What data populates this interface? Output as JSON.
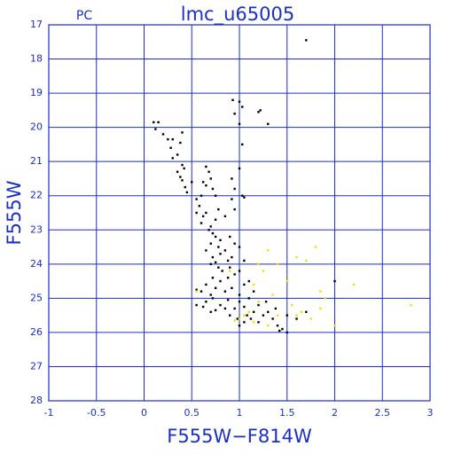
{
  "chart_data": {
    "type": "scatter",
    "title": "lmc_u65005",
    "label": "PC",
    "xlabel": "F555W−F814W",
    "ylabel": "F555W",
    "xlim": [
      -1,
      3
    ],
    "xticks": [
      -1,
      -0.5,
      0,
      0.5,
      1,
      1.5,
      2,
      2.5,
      3
    ],
    "ylim": [
      17,
      28
    ],
    "y_inverted": true,
    "yticks": [
      17,
      18,
      19,
      20,
      21,
      22,
      23,
      24,
      25,
      26,
      27,
      28
    ],
    "grid": true,
    "series": [
      {
        "color": "#000000",
        "x": [
          1.7,
          0.93,
          1.0,
          1.03,
          1.2,
          1.22,
          1.3,
          0.95,
          1.0,
          0.1,
          0.15,
          0.12,
          0.25,
          0.3,
          0.2,
          0.4,
          0.38,
          0.28,
          0.35,
          0.3,
          1.03,
          0.4,
          0.42,
          0.35,
          0.38,
          0.4,
          0.43,
          0.5,
          0.45,
          0.65,
          0.68,
          0.7,
          0.62,
          0.65,
          0.72,
          0.6,
          0.55,
          0.58,
          0.75,
          0.92,
          0.95,
          1.0,
          1.03,
          1.05,
          0.92,
          0.55,
          0.62,
          0.6,
          0.65,
          0.7,
          0.75,
          0.78,
          0.85,
          0.95,
          0.68,
          0.72,
          0.75,
          0.8,
          0.7,
          0.78,
          0.85,
          0.9,
          0.95,
          0.65,
          0.72,
          0.8,
          0.88,
          0.92,
          1.0,
          1.05,
          0.75,
          0.7,
          0.78,
          0.82,
          0.9,
          0.95,
          0.72,
          0.8,
          0.88,
          1.0,
          1.05,
          0.65,
          0.75,
          0.85,
          0.92,
          1.0,
          1.1,
          1.15,
          0.7,
          0.6,
          0.55,
          0.55,
          0.65,
          0.72,
          0.8,
          0.88,
          0.95,
          1.0,
          1.05,
          1.1,
          1.15,
          1.2,
          1.25,
          0.9,
          0.85,
          0.98,
          1.05,
          1.12,
          1.2,
          1.3,
          1.35,
          1.4,
          1.45,
          0.75,
          0.62,
          1.0,
          1.28,
          1.5,
          1.6,
          1.7,
          1.38,
          1.08,
          0.7,
          2.0,
          1.5,
          1.42
        ],
        "values": [
          17.45,
          19.2,
          19.25,
          19.4,
          19.55,
          19.5,
          19.9,
          19.6,
          19.9,
          19.85,
          19.85,
          20.05,
          20.35,
          20.35,
          20.2,
          20.15,
          20.45,
          20.6,
          20.8,
          20.9,
          20.5,
          21.1,
          21.2,
          21.3,
          21.45,
          21.55,
          21.75,
          21.6,
          21.9,
          21.15,
          21.3,
          21.5,
          21.6,
          21.7,
          21.8,
          22.0,
          22.1,
          22.3,
          22.0,
          21.5,
          21.8,
          21.2,
          22.0,
          22.05,
          22.1,
          22.5,
          22.6,
          22.8,
          22.5,
          22.9,
          22.7,
          22.4,
          22.6,
          22.4,
          23.0,
          23.1,
          23.2,
          23.3,
          23.4,
          23.5,
          23.6,
          23.2,
          23.4,
          23.6,
          23.8,
          23.7,
          23.9,
          23.8,
          23.5,
          23.9,
          23.95,
          24.0,
          24.1,
          24.2,
          24.1,
          24.3,
          24.4,
          24.5,
          24.4,
          24.2,
          24.6,
          24.6,
          24.7,
          24.8,
          24.7,
          24.9,
          24.5,
          24.8,
          24.9,
          24.8,
          24.75,
          25.2,
          25.1,
          25.0,
          25.2,
          25.05,
          25.3,
          25.1,
          25.25,
          25.0,
          25.4,
          25.2,
          25.5,
          25.5,
          25.3,
          25.6,
          25.7,
          25.6,
          25.7,
          25.4,
          25.6,
          25.8,
          25.9,
          25.35,
          25.25,
          25.8,
          25.1,
          25.5,
          25.6,
          25.4,
          25.3,
          25.5,
          25.4,
          24.5,
          26.0,
          25.95
        ]
      },
      {
        "color": "#f0e000",
        "x": [
          1.8,
          1.6,
          1.7,
          1.4,
          1.3,
          1.2,
          1.25,
          1.5,
          1.9,
          1.85,
          1.55,
          1.6,
          1.65,
          2.2,
          2.8,
          1.1,
          1.2,
          1.35,
          1.0,
          1.05,
          0.95,
          1.4,
          1.75,
          1.85,
          0.55,
          1.15,
          2.0,
          1.3,
          1.15,
          0.9
        ],
        "values": [
          23.5,
          23.8,
          23.9,
          24.0,
          23.6,
          24.0,
          24.2,
          24.5,
          25.0,
          24.8,
          25.2,
          25.5,
          25.4,
          24.6,
          25.2,
          25.4,
          25.1,
          24.9,
          25.6,
          25.5,
          25.65,
          25.5,
          25.6,
          25.3,
          24.8,
          24.6,
          25.8,
          25.8,
          25.7,
          24.2
        ]
      }
    ]
  }
}
